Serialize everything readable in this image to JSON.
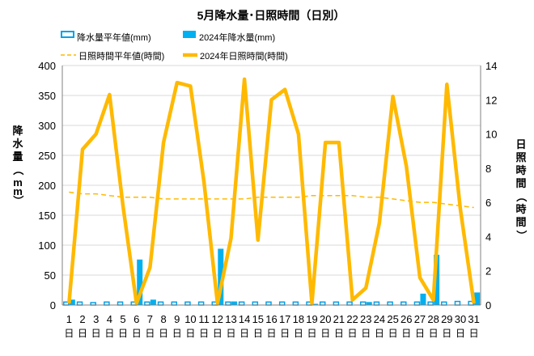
{
  "chart_data": {
    "type": "bar-line",
    "title": "5月降水量･日照時間（日別）",
    "left_axis_label": "降水量（mm）",
    "right_axis_label": "日照時間（時間）",
    "y_left": {
      "min": 0,
      "max": 400,
      "ticks": [
        0,
        50,
        100,
        150,
        200,
        250,
        300,
        350,
        400
      ]
    },
    "y_right": {
      "min": 0,
      "max": 14,
      "ticks": [
        0,
        2,
        4,
        6,
        8,
        10,
        12,
        14
      ]
    },
    "day_suffix": "日",
    "categories": [
      1,
      2,
      3,
      4,
      5,
      6,
      7,
      8,
      9,
      10,
      11,
      12,
      13,
      14,
      15,
      16,
      17,
      18,
      19,
      20,
      21,
      22,
      23,
      24,
      25,
      26,
      27,
      28,
      29,
      30,
      31
    ],
    "series": [
      {
        "name": "降水量平年値(mm)",
        "type": "bar",
        "axis": "left",
        "color": "#00a0e9",
        "style": "hollow",
        "values": [
          5,
          5,
          4,
          5,
          5,
          5,
          5,
          5,
          5,
          5,
          5,
          5,
          5,
          5,
          5,
          5,
          5,
          5,
          5,
          5,
          5,
          5,
          5,
          5,
          5,
          5,
          5,
          5,
          5,
          6,
          6
        ]
      },
      {
        "name": "2024年降水量(mm)",
        "type": "bar",
        "axis": "left",
        "color": "#00b0f0",
        "style": "filled",
        "values": [
          9,
          0,
          0,
          0,
          0,
          76,
          9,
          0,
          0,
          0,
          0,
          94,
          6,
          0,
          0,
          0,
          0,
          0,
          2,
          0,
          0,
          0,
          5,
          0,
          0,
          0,
          19,
          84,
          0,
          0,
          21
        ]
      },
      {
        "name": "日照時間平年値(時間)",
        "type": "line",
        "axis": "right",
        "color": "#ffb900",
        "style": "dashed",
        "values": [
          6.6,
          6.5,
          6.5,
          6.4,
          6.3,
          6.3,
          6.3,
          6.2,
          6.2,
          6.2,
          6.2,
          6.2,
          6.2,
          6.2,
          6.3,
          6.3,
          6.3,
          6.3,
          6.4,
          6.4,
          6.4,
          6.4,
          6.3,
          6.3,
          6.2,
          6.1,
          6.0,
          6.0,
          5.9,
          5.8,
          5.7
        ]
      },
      {
        "name": "2024年日照時間(時間)",
        "type": "line",
        "axis": "right",
        "color": "#ffb900",
        "style": "solid",
        "values": [
          0.1,
          9.1,
          10.0,
          12.3,
          5.8,
          0.1,
          2.2,
          9.5,
          13.0,
          12.8,
          7.2,
          0.1,
          3.9,
          13.2,
          3.8,
          12.0,
          12.6,
          10.0,
          0.1,
          9.5,
          9.5,
          0.3,
          1.0,
          4.8,
          12.2,
          8.1,
          1.6,
          0.3,
          12.9,
          5.6,
          0.1
        ]
      }
    ]
  }
}
